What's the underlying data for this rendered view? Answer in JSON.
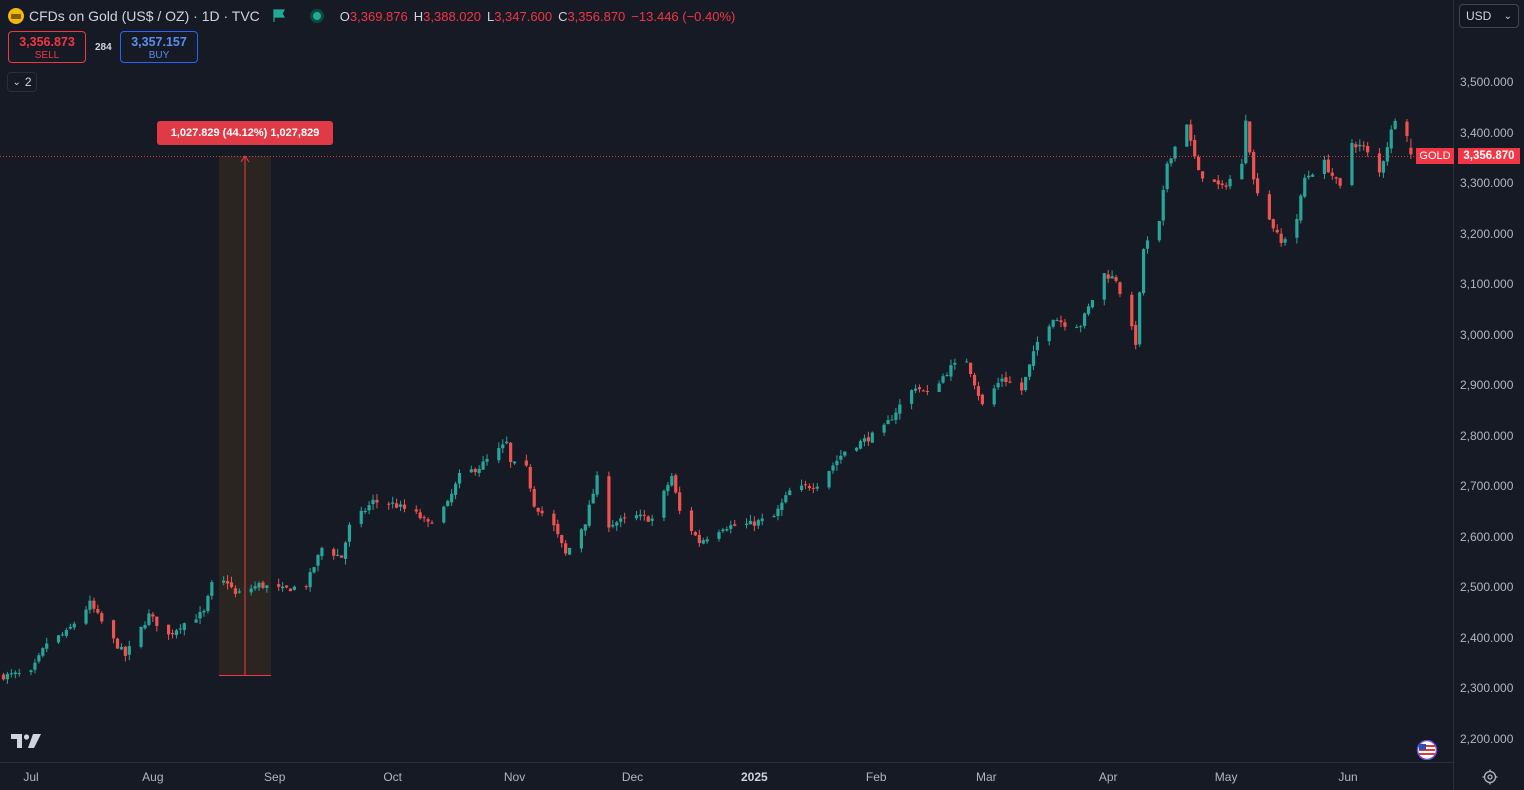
{
  "header": {
    "title": "CFDs on Gold (US$ / OZ) · 1D · TVC",
    "open_label": "O",
    "open": "3,369.876",
    "high_label": "H",
    "high": "3,388.020",
    "low_label": "L",
    "low": "3,347.600",
    "close_label": "C",
    "close": "3,356.870",
    "change": "−13.446 (−0.40%)"
  },
  "trade": {
    "sell_price": "3,356.873",
    "sell_label": "SELL",
    "spread": "284",
    "buy_price": "3,357.157",
    "buy_label": "BUY"
  },
  "indicators_toggle": {
    "count": "2"
  },
  "currency_select": {
    "value": "USD"
  },
  "measure": {
    "label": "1,027.829 (44.12%) 1,027,829"
  },
  "last_price": {
    "symbol": "GOLD",
    "value": "3,356.870"
  },
  "colors": {
    "up": "#26a69a",
    "down": "#ef5350",
    "background": "#161a25",
    "accent": "#f23645"
  },
  "icons": [
    "gold-icon",
    "flag-icon",
    "market-status-icon",
    "chevron-down-icon",
    "tradingview-logo",
    "us-flag-icon",
    "settings-icon"
  ],
  "chart_data": {
    "type": "candlestick",
    "title": "CFDs on Gold (US$ / OZ)",
    "interval": "1D",
    "ylim": [
      2160,
      3610
    ],
    "y_ticks": [
      "2,200.000",
      "2,300.000",
      "2,400.000",
      "2,500.000",
      "2,600.000",
      "2,700.000",
      "2,800.000",
      "2,900.000",
      "3,000.000",
      "3,100.000",
      "3,200.000",
      "3,300.000",
      "3,400.000",
      "3,500.000"
    ],
    "x_ticks": [
      {
        "label": "Jul",
        "date": "2024-07-01"
      },
      {
        "label": "Aug",
        "date": "2024-08-01"
      },
      {
        "label": "Sep",
        "date": "2024-09-01"
      },
      {
        "label": "Oct",
        "date": "2024-10-01"
      },
      {
        "label": "Nov",
        "date": "2024-11-01"
      },
      {
        "label": "Dec",
        "date": "2024-12-01"
      },
      {
        "label": "2025",
        "date": "2025-01-01"
      },
      {
        "label": "Feb",
        "date": "2025-02-01"
      },
      {
        "label": "Mar",
        "date": "2025-03-01"
      },
      {
        "label": "Apr",
        "date": "2025-04-01"
      },
      {
        "label": "May",
        "date": "2025-05-01"
      },
      {
        "label": "Jun",
        "date": "2025-06-01"
      }
    ],
    "closes": [
      {
        "date": "2024-06-24",
        "close": 2325
      },
      {
        "date": "2024-07-01",
        "close": 2330
      },
      {
        "date": "2024-07-05",
        "close": 2390
      },
      {
        "date": "2024-07-10",
        "close": 2410
      },
      {
        "date": "2024-07-16",
        "close": 2468
      },
      {
        "date": "2024-07-22",
        "close": 2395
      },
      {
        "date": "2024-07-25",
        "close": 2365
      },
      {
        "date": "2024-07-31",
        "close": 2445
      },
      {
        "date": "2024-08-05",
        "close": 2405
      },
      {
        "date": "2024-08-08",
        "close": 2425
      },
      {
        "date": "2024-08-14",
        "close": 2450
      },
      {
        "date": "2024-08-16",
        "close": 2505
      },
      {
        "date": "2024-08-20",
        "close": 2512
      },
      {
        "date": "2024-08-22",
        "close": 2485
      },
      {
        "date": "2024-08-28",
        "close": 2505
      },
      {
        "date": "2024-09-03",
        "close": 2495
      },
      {
        "date": "2024-09-09",
        "close": 2505
      },
      {
        "date": "2024-09-13",
        "close": 2578
      },
      {
        "date": "2024-09-18",
        "close": 2560
      },
      {
        "date": "2024-09-20",
        "close": 2620
      },
      {
        "date": "2024-09-26",
        "close": 2670
      },
      {
        "date": "2024-10-01",
        "close": 2665
      },
      {
        "date": "2024-10-07",
        "close": 2645
      },
      {
        "date": "2024-10-10",
        "close": 2625
      },
      {
        "date": "2024-10-15",
        "close": 2665
      },
      {
        "date": "2024-10-18",
        "close": 2720
      },
      {
        "date": "2024-10-23",
        "close": 2738
      },
      {
        "date": "2024-10-30",
        "close": 2785
      },
      {
        "date": "2024-10-31",
        "close": 2745
      },
      {
        "date": "2024-11-04",
        "close": 2735
      },
      {
        "date": "2024-11-06",
        "close": 2665
      },
      {
        "date": "2024-11-11",
        "close": 2620
      },
      {
        "date": "2024-11-14",
        "close": 2565
      },
      {
        "date": "2024-11-19",
        "close": 2630
      },
      {
        "date": "2024-11-22",
        "close": 2715
      },
      {
        "date": "2024-11-25",
        "close": 2625
      },
      {
        "date": "2024-12-02",
        "close": 2640
      },
      {
        "date": "2024-12-06",
        "close": 2635
      },
      {
        "date": "2024-12-11",
        "close": 2720
      },
      {
        "date": "2024-12-13",
        "close": 2650
      },
      {
        "date": "2024-12-18",
        "close": 2590
      },
      {
        "date": "2024-12-24",
        "close": 2620
      },
      {
        "date": "2024-12-31",
        "close": 2625
      },
      {
        "date": "2025-01-06",
        "close": 2640
      },
      {
        "date": "2025-01-10",
        "close": 2690
      },
      {
        "date": "2025-01-17",
        "close": 2705
      },
      {
        "date": "2025-01-24",
        "close": 2770
      },
      {
        "date": "2025-01-31",
        "close": 2800
      },
      {
        "date": "2025-02-03",
        "close": 2815
      },
      {
        "date": "2025-02-07",
        "close": 2860
      },
      {
        "date": "2025-02-11",
        "close": 2898
      },
      {
        "date": "2025-02-14",
        "close": 2882
      },
      {
        "date": "2025-02-20",
        "close": 2935
      },
      {
        "date": "2025-02-24",
        "close": 2950
      },
      {
        "date": "2025-02-28",
        "close": 2860
      },
      {
        "date": "2025-03-05",
        "close": 2915
      },
      {
        "date": "2025-03-10",
        "close": 2890
      },
      {
        "date": "2025-03-14",
        "close": 2985
      },
      {
        "date": "2025-03-18",
        "close": 3035
      },
      {
        "date": "2025-03-21",
        "close": 3022
      },
      {
        "date": "2025-03-25",
        "close": 3020
      },
      {
        "date": "2025-03-31",
        "close": 3120
      },
      {
        "date": "2025-04-03",
        "close": 3110
      },
      {
        "date": "2025-04-08",
        "close": 2985
      },
      {
        "date": "2025-04-10",
        "close": 3170
      },
      {
        "date": "2025-04-14",
        "close": 3220
      },
      {
        "date": "2025-04-16",
        "close": 3340
      },
      {
        "date": "2025-04-21",
        "close": 3420
      },
      {
        "date": "2025-04-22",
        "close": 3380
      },
      {
        "date": "2025-04-24",
        "close": 3320
      },
      {
        "date": "2025-04-30",
        "close": 3290
      },
      {
        "date": "2025-05-05",
        "close": 3335
      },
      {
        "date": "2025-05-06",
        "close": 3430
      },
      {
        "date": "2025-05-08",
        "close": 3305
      },
      {
        "date": "2025-05-12",
        "close": 3230
      },
      {
        "date": "2025-05-15",
        "close": 3180
      },
      {
        "date": "2025-05-19",
        "close": 3230
      },
      {
        "date": "2025-05-21",
        "close": 3310
      },
      {
        "date": "2025-05-26",
        "close": 3340
      },
      {
        "date": "2025-05-30",
        "close": 3290
      },
      {
        "date": "2025-06-02",
        "close": 3380
      },
      {
        "date": "2025-06-05",
        "close": 3370
      },
      {
        "date": "2025-06-09",
        "close": 3320
      },
      {
        "date": "2025-06-13",
        "close": 3430
      },
      {
        "date": "2025-06-16",
        "close": 3400
      },
      {
        "date": "2025-06-17",
        "close": 3357
      }
    ],
    "last_candle": {
      "date": "2025-06-17",
      "open": 3369.876,
      "high": 3388.02,
      "low": 3347.6,
      "close": 3356.87
    },
    "measurement": {
      "start_date": "2024-08-20",
      "end_date": "2024-08-28",
      "from": 2329.041,
      "to": 3356.87,
      "change": 1027.829,
      "change_pct": 44.12
    },
    "grid": false,
    "legend": "none"
  }
}
